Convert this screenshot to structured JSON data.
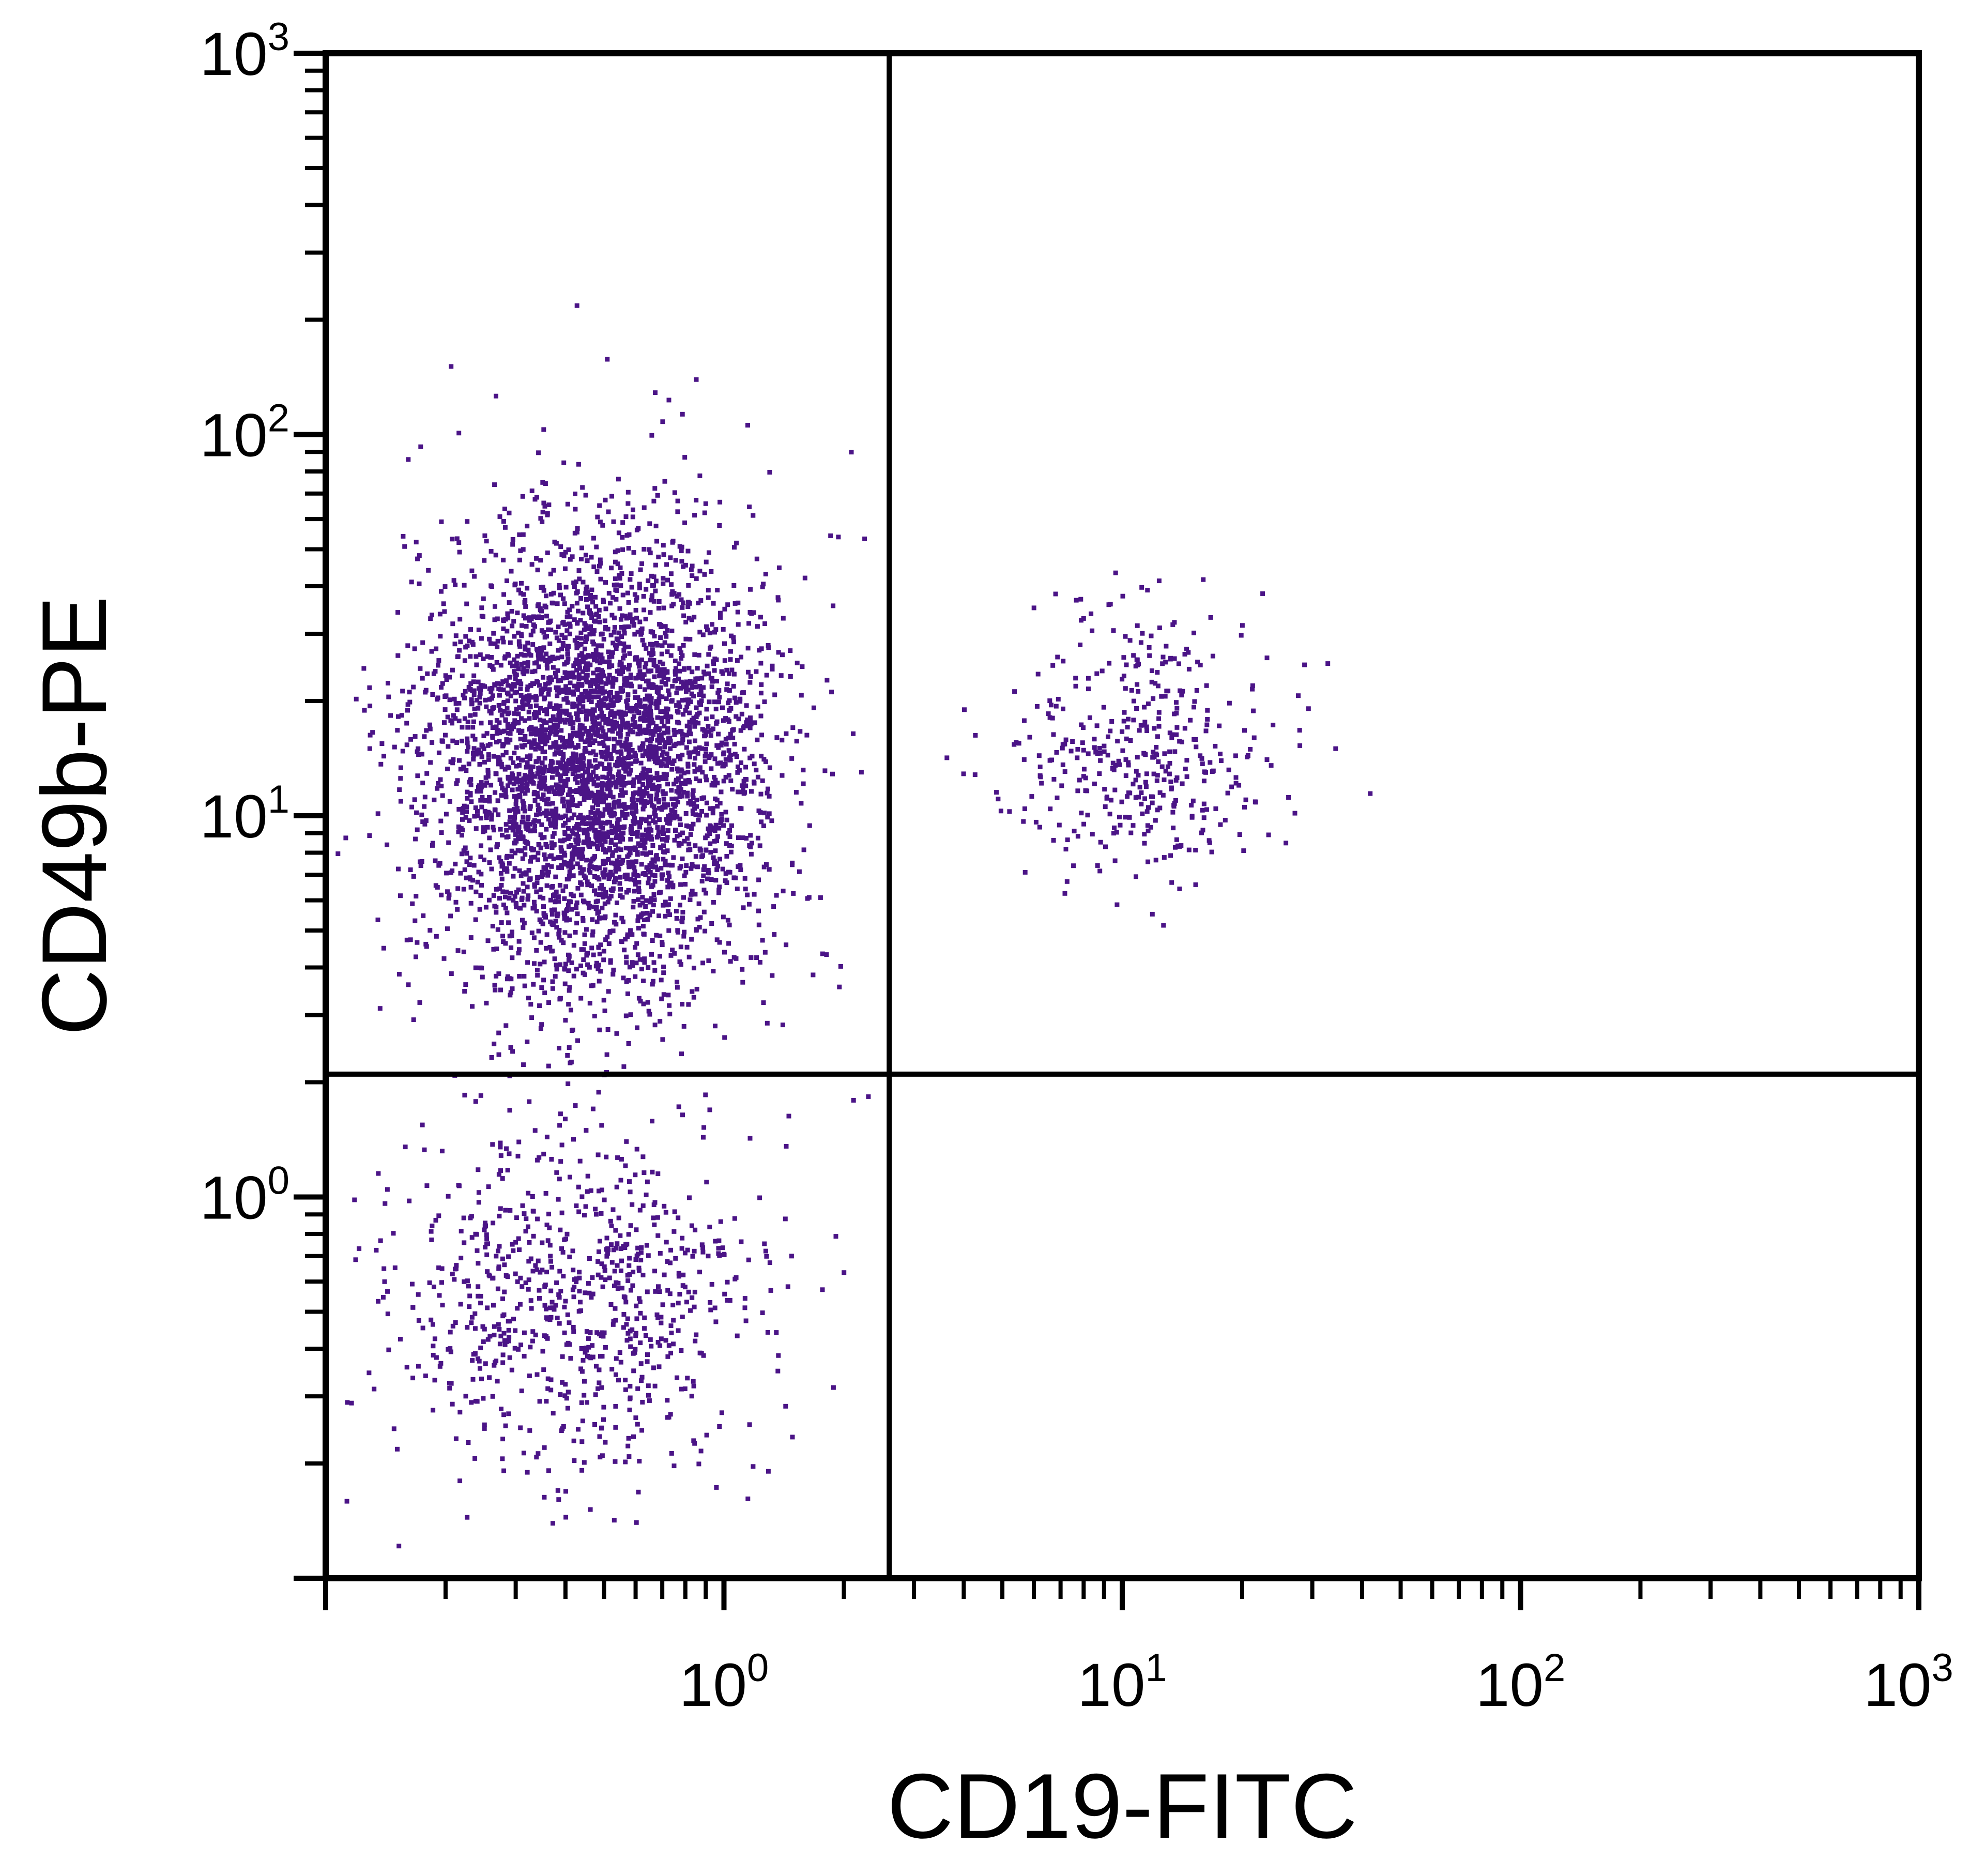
{
  "colors": {
    "events": "#4b1487",
    "axes": "#000000",
    "background": "#ffffff"
  },
  "chart_data": {
    "type": "scatter",
    "title": "",
    "xlabel": "CD19-FITC",
    "ylabel": "CD49b-PE",
    "x_scale": "log",
    "y_scale": "log",
    "xlim": [
      0.1,
      1000
    ],
    "ylim": [
      0.1,
      1000
    ],
    "x_ticks": [
      {
        "value": 1,
        "base": "10",
        "exp": "0"
      },
      {
        "value": 10,
        "base": "10",
        "exp": "1"
      },
      {
        "value": 100,
        "base": "10",
        "exp": "2"
      },
      {
        "value": 1000,
        "base": "10",
        "exp": "3"
      }
    ],
    "y_ticks": [
      {
        "value": 1,
        "base": "10",
        "exp": "0"
      },
      {
        "value": 10,
        "base": "10",
        "exp": "1"
      },
      {
        "value": 100,
        "base": "10",
        "exp": "2"
      },
      {
        "value": 1000,
        "base": "10",
        "exp": "3"
      }
    ],
    "grid": false,
    "legend": "none",
    "quadrant_gates": {
      "x": 2.6,
      "y": 2.1
    },
    "populations": [
      {
        "x_center": 0.48,
        "y_center": 14,
        "x_spread_log": 0.21,
        "y_spread_log": 0.3,
        "count": 4200
      },
      {
        "x_center": 0.42,
        "y_center": 0.55,
        "x_spread_log": 0.24,
        "y_spread_log": 0.24,
        "count": 800
      },
      {
        "x_center": 11,
        "y_center": 15,
        "x_spread_log": 0.17,
        "y_spread_log": 0.19,
        "count": 420
      }
    ]
  }
}
